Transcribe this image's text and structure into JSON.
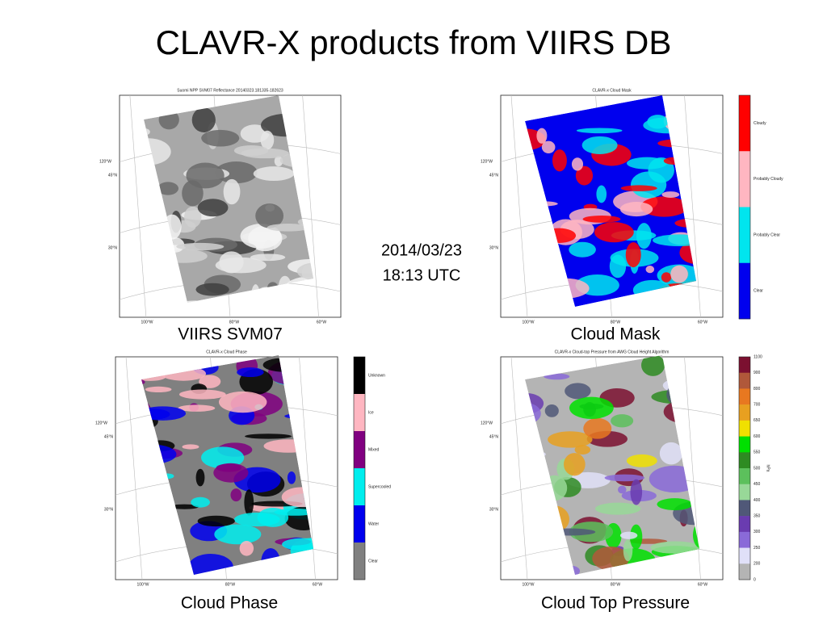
{
  "title": "CLAVR-X products from VIIRS DB",
  "timestamp": [
    "2014/03/23",
    "18:13 UTC"
  ],
  "panels": [
    {
      "caption": "VIIRS SVM07",
      "plot_title": "Suomi NPP SVM07 Reflectance 20140323.181335-182623",
      "lat_labels": [
        "120°W",
        "45°N",
        "30°N"
      ],
      "lon_labels": [
        "100°W",
        "80°W",
        "60°W"
      ]
    },
    {
      "caption": "Cloud Mask",
      "plot_title": "CLAVR-x Cloud Mask",
      "lat_labels": [
        "120°W",
        "45°N",
        "30°N"
      ],
      "lon_labels": [
        "100°W",
        "80°W",
        "60°W"
      ],
      "colorbar": {
        "labels": [
          "Cloudy",
          "Probably Cloudy",
          "Probably Clear",
          "Clear"
        ],
        "colors": [
          "#ff0000",
          "#ffb6c1",
          "#00e5ee",
          "#0000ee"
        ]
      }
    },
    {
      "caption": "Cloud Phase",
      "plot_title": "CLAVR-x Cloud Phase",
      "lat_labels": [
        "120°W",
        "45°N",
        "30°N"
      ],
      "lon_labels": [
        "100°W",
        "80°W",
        "60°W"
      ],
      "colorbar": {
        "labels": [
          "Unknown",
          "Ice",
          "Mixed",
          "Supercooled",
          "Water",
          "Clear"
        ],
        "colors": [
          "#000000",
          "#ffb6c1",
          "#800080",
          "#00eeee",
          "#0000ee",
          "#808080"
        ]
      }
    },
    {
      "caption": "Cloud Top Pressure",
      "plot_title": "CLAVR-x Cloud-top Pressure from AWG Cloud Height Algorithm",
      "lat_labels": [
        "120°W",
        "45°N",
        "30°N"
      ],
      "lon_labels": [
        "100°W",
        "80°W",
        "60°W"
      ],
      "colorbar": {
        "ticks": [
          1100,
          900,
          800,
          700,
          650,
          600,
          550,
          500,
          450,
          400,
          350,
          300,
          250,
          200,
          0
        ],
        "unit": "hPa",
        "colors": [
          "#7b1030",
          "#b0583a",
          "#e87820",
          "#e8a020",
          "#f0e000",
          "#00e000",
          "#2e8b22",
          "#5cc05c",
          "#98d898",
          "#505878",
          "#6a3cb0",
          "#8a6ad8",
          "#e0e0f8",
          "#b4b4b4"
        ]
      }
    }
  ]
}
